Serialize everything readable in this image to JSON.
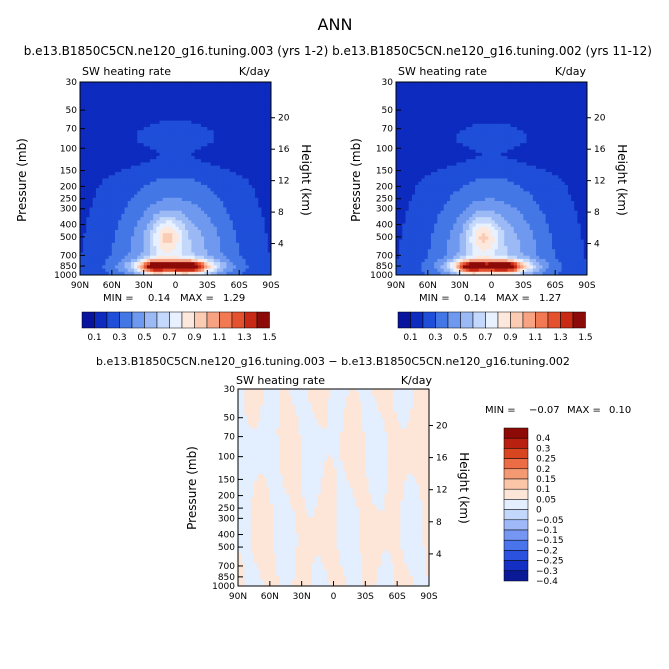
{
  "figure_title": "ANN",
  "colors": {
    "blue_scale": [
      "#08139e",
      "#0d2bbf",
      "#1f4fd9",
      "#4477e6",
      "#6f98ef",
      "#9bb9f5",
      "#c4d8fb",
      "#e8f1ff",
      "#fde8dd",
      "#fbcbb4",
      "#f7a383",
      "#f17953",
      "#e4512e",
      "#c92a16",
      "#8c0a07"
    ],
    "anomaly_scale_low_to_high": [
      "#0a1a96",
      "#1430c4",
      "#2a52de",
      "#4a74ec",
      "#7597f3",
      "#9fb8f7",
      "#c3d6fb",
      "#e3eeff",
      "#fde6d7",
      "#fbc6a8",
      "#f49a73",
      "#ec6d45",
      "#d94421",
      "#b9200f",
      "#8e0a06"
    ]
  },
  "chart_data": [
    {
      "type": "heatmap",
      "title": "b.e13.B1850C5CN.ne120_g16.tuning.003 (yrs 1-2)",
      "subtitle_left": "SW heating rate",
      "subtitle_right": "K/day",
      "ylabel": "Pressure (mb)",
      "ylabel_right": "Height (km)",
      "x_ticks": [
        "90N",
        "60N",
        "30N",
        "0",
        "30S",
        "60S",
        "90S"
      ],
      "y_ticks": [
        "30",
        "50",
        "70",
        "100",
        "150",
        "200",
        "250",
        "300",
        "400",
        "500",
        "700",
        "850",
        "1000"
      ],
      "height_ticks": [
        "20",
        "16",
        "12",
        "8",
        "4"
      ],
      "min_label": "MIN =",
      "min_value": "0.14",
      "max_label": "MAX =",
      "max_value": "1.29",
      "colorbar_ticks": [
        "0.1",
        "0.3",
        "0.5",
        "0.7",
        "0.9",
        "1.1",
        "1.3",
        "1.5"
      ],
      "levels": [
        0.0,
        0.1,
        0.2,
        0.3,
        0.4,
        0.5,
        0.6,
        0.7,
        0.8,
        0.9,
        1.0,
        1.1,
        1.2,
        1.3,
        1.4,
        1.5
      ]
    },
    {
      "type": "heatmap",
      "title": "b.e13.B1850C5CN.ne120_g16.tuning.002 (yrs 11-12)",
      "subtitle_left": "SW heating rate",
      "subtitle_right": "K/day",
      "ylabel": "Pressure (mb)",
      "ylabel_right": "Height (km)",
      "x_ticks": [
        "90N",
        "60N",
        "30N",
        "0",
        "30S",
        "60S",
        "90S"
      ],
      "y_ticks": [
        "30",
        "50",
        "70",
        "100",
        "150",
        "200",
        "250",
        "300",
        "400",
        "500",
        "700",
        "850",
        "1000"
      ],
      "height_ticks": [
        "20",
        "16",
        "12",
        "8",
        "4"
      ],
      "min_label": "MIN =",
      "min_value": "0.14",
      "max_label": "MAX =",
      "max_value": "1.27",
      "colorbar_ticks": [
        "0.1",
        "0.3",
        "0.5",
        "0.7",
        "0.9",
        "1.1",
        "1.3",
        "1.5"
      ],
      "levels": [
        0.0,
        0.1,
        0.2,
        0.3,
        0.4,
        0.5,
        0.6,
        0.7,
        0.8,
        0.9,
        1.0,
        1.1,
        1.2,
        1.3,
        1.4,
        1.5
      ]
    },
    {
      "type": "heatmap",
      "title": "b.e13.B1850C5CN.ne120_g16.tuning.003 − b.e13.B1850C5CN.ne120_g16.tuning.002",
      "subtitle_left": "SW heating rate",
      "subtitle_right": "K/day",
      "ylabel": "Pressure (mb)",
      "ylabel_right": "Height (km)",
      "x_ticks": [
        "90N",
        "60N",
        "30N",
        "0",
        "30S",
        "60S",
        "90S"
      ],
      "y_ticks": [
        "30",
        "50",
        "70",
        "100",
        "150",
        "200",
        "250",
        "300",
        "400",
        "500",
        "700",
        "850",
        "1000"
      ],
      "height_ticks": [
        "20",
        "16",
        "12",
        "8",
        "4"
      ],
      "min_label": "MIN =",
      "min_value": "−0.07",
      "max_label": "MAX =",
      "max_value": "0.10",
      "colorbar_ticks": [
        "0.4",
        "0.3",
        "0.25",
        "0.2",
        "0.15",
        "0.1",
        "0.05",
        "0",
        "−0.05",
        "−0.1",
        "−0.15",
        "−0.2",
        "−0.25",
        "−0.3",
        "−0.4"
      ]
    }
  ]
}
